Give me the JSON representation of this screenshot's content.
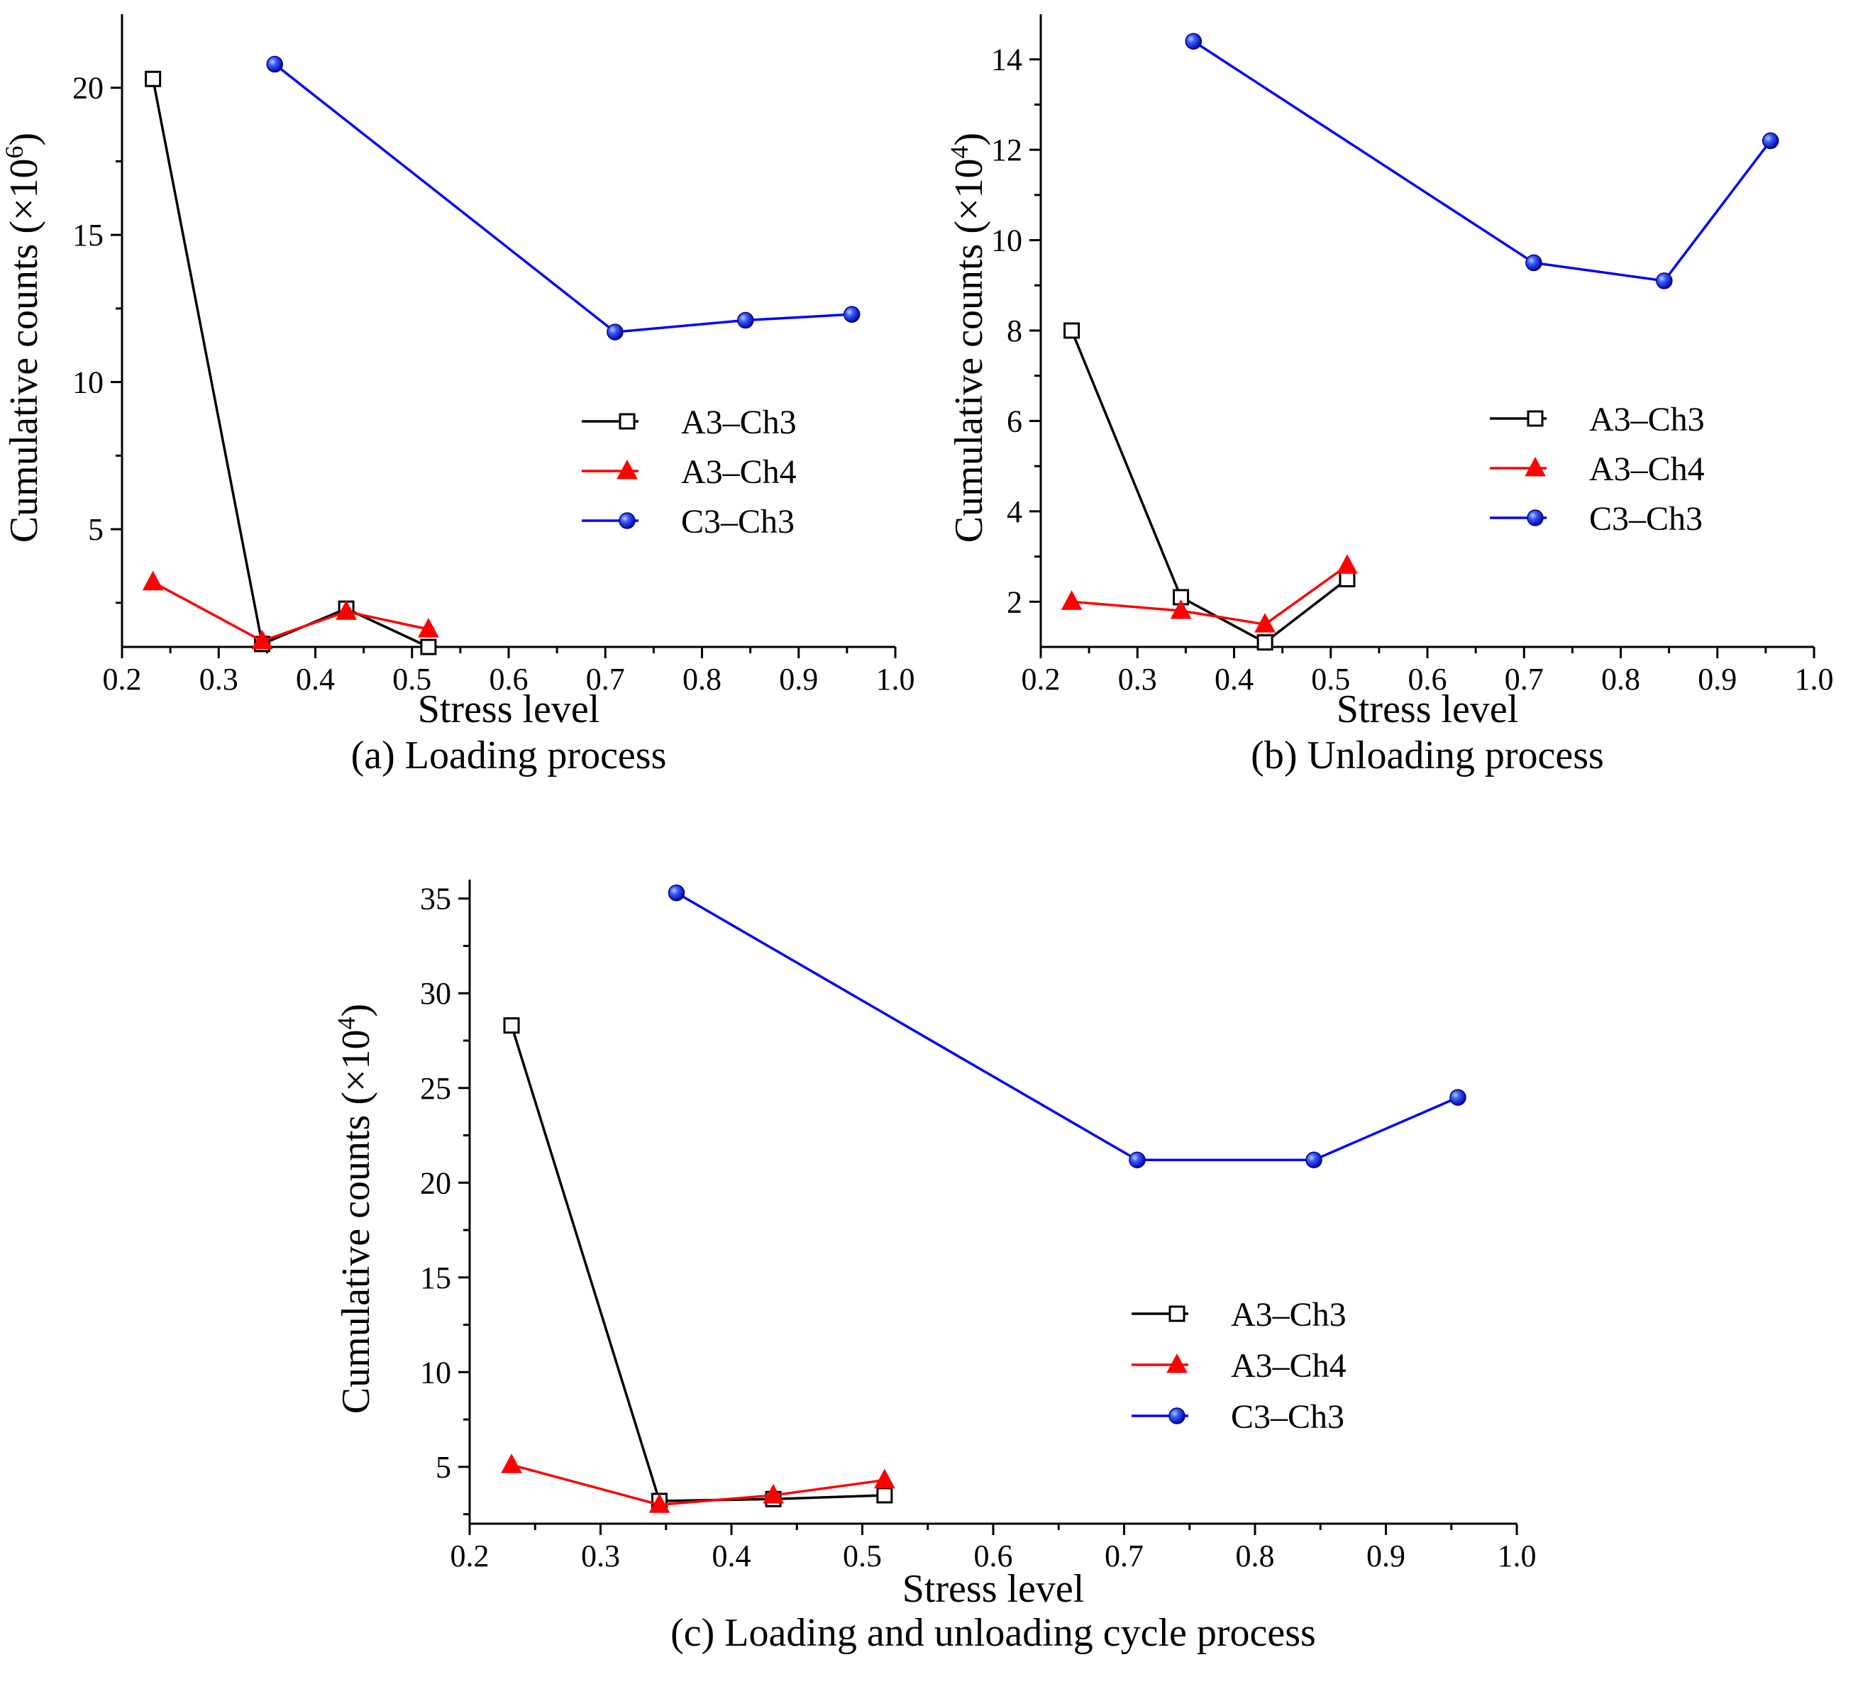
{
  "chart_data": [
    {
      "type": "line",
      "id": "a",
      "caption": "(a) Loading process",
      "xlabel": "Stress level",
      "ylabel_main": "Cumulative counts (×10",
      "ylabel_exp": "6",
      "ylabel_close": ")",
      "xlim": [
        0.2,
        1.0
      ],
      "ylim": [
        1.0,
        22.5
      ],
      "x_ticks": [
        0.2,
        0.3,
        0.4,
        0.5,
        0.6,
        0.7,
        0.8,
        0.9,
        1.0
      ],
      "x_tick_labels": [
        "0.2",
        "0.3",
        "0.4",
        "0.5",
        "0.6",
        "0.7",
        "0.8",
        "0.9",
        "1.0"
      ],
      "y_ticks": [
        5,
        10,
        15,
        20
      ],
      "y_tick_labels": [
        "5",
        "10",
        "15",
        "20"
      ],
      "legend_position": "center-right",
      "series": [
        {
          "name": "A3–Ch3",
          "color": "#000000",
          "marker": "square",
          "x": [
            0.232,
            0.345,
            0.432,
            0.517
          ],
          "y": [
            20.3,
            1.1,
            2.3,
            1.0
          ]
        },
        {
          "name": "A3–Ch4",
          "color": "#ff0000",
          "marker": "triangle",
          "x": [
            0.232,
            0.345,
            0.432,
            0.517
          ],
          "y": [
            3.2,
            1.2,
            2.2,
            1.6
          ]
        },
        {
          "name": "C3–Ch3",
          "color": "#0000ff",
          "marker": "circle",
          "x": [
            0.358,
            0.71,
            0.845,
            0.955
          ],
          "y": [
            20.8,
            11.7,
            12.1,
            12.3
          ]
        }
      ]
    },
    {
      "type": "line",
      "id": "b",
      "caption": "(b) Unloading process",
      "xlabel": "Stress level",
      "ylabel_main": "Cumulative counts (×10",
      "ylabel_exp": "4",
      "ylabel_close": ")",
      "xlim": [
        0.2,
        1.0
      ],
      "ylim": [
        1.0,
        15.0
      ],
      "x_ticks": [
        0.2,
        0.3,
        0.4,
        0.5,
        0.6,
        0.7,
        0.8,
        0.9,
        1.0
      ],
      "x_tick_labels": [
        "0.2",
        "0.3",
        "0.4",
        "0.5",
        "0.6",
        "0.7",
        "0.8",
        "0.9",
        "1.0"
      ],
      "y_ticks": [
        2,
        4,
        6,
        8,
        10,
        12,
        14
      ],
      "y_tick_labels": [
        "2",
        "4",
        "6",
        "8",
        "10",
        "12",
        "14"
      ],
      "legend_position": "center-right",
      "series": [
        {
          "name": "A3–Ch3",
          "color": "#000000",
          "marker": "square",
          "x": [
            0.232,
            0.345,
            0.432,
            0.517
          ],
          "y": [
            8.0,
            2.1,
            1.1,
            2.5
          ]
        },
        {
          "name": "A3–Ch4",
          "color": "#ff0000",
          "marker": "triangle",
          "x": [
            0.232,
            0.345,
            0.432,
            0.517
          ],
          "y": [
            2.0,
            1.8,
            1.5,
            2.8
          ]
        },
        {
          "name": "C3–Ch3",
          "color": "#0000ff",
          "marker": "circle",
          "x": [
            0.358,
            0.71,
            0.845,
            0.955
          ],
          "y": [
            14.4,
            9.5,
            9.1,
            12.2
          ]
        }
      ]
    },
    {
      "type": "line",
      "id": "c",
      "caption": "(c) Loading and unloading cycle process",
      "xlabel": "Stress level",
      "ylabel_main": "Cumulative counts (×10",
      "ylabel_exp": "4",
      "ylabel_close": ")",
      "xlim": [
        0.2,
        1.0
      ],
      "ylim": [
        2.0,
        36.0
      ],
      "x_ticks": [
        0.2,
        0.3,
        0.4,
        0.5,
        0.6,
        0.7,
        0.8,
        0.9,
        1.0
      ],
      "x_tick_labels": [
        "0.2",
        "0.3",
        "0.4",
        "0.5",
        "0.6",
        "0.7",
        "0.8",
        "0.9",
        "1.0"
      ],
      "y_ticks": [
        5,
        10,
        15,
        20,
        25,
        30,
        35
      ],
      "y_tick_labels": [
        "5",
        "10",
        "15",
        "20",
        "25",
        "30",
        "35"
      ],
      "legend_position": "lower-right",
      "series": [
        {
          "name": "A3–Ch3",
          "color": "#000000",
          "marker": "square",
          "x": [
            0.232,
            0.345,
            0.432,
            0.517
          ],
          "y": [
            28.3,
            3.2,
            3.3,
            3.5
          ]
        },
        {
          "name": "A3–Ch4",
          "color": "#ff0000",
          "marker": "triangle",
          "x": [
            0.232,
            0.345,
            0.432,
            0.517
          ],
          "y": [
            5.1,
            3.0,
            3.5,
            4.3
          ]
        },
        {
          "name": "C3–Ch3",
          "color": "#0000ff",
          "marker": "circle",
          "x": [
            0.358,
            0.71,
            0.845,
            0.955
          ],
          "y": [
            35.3,
            21.2,
            21.2,
            24.5
          ]
        }
      ]
    }
  ]
}
